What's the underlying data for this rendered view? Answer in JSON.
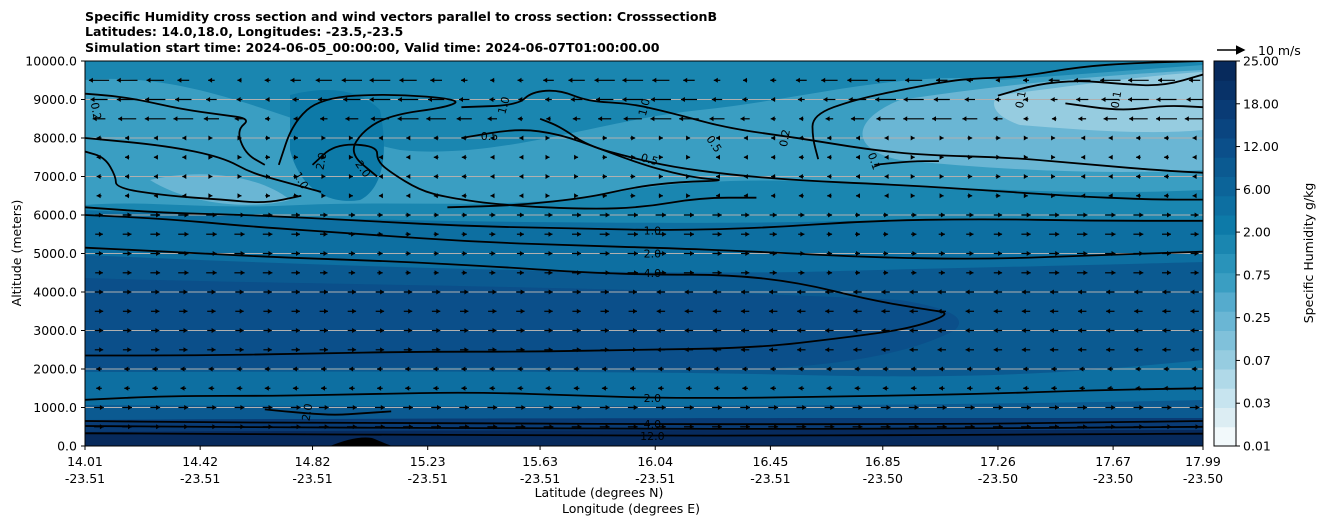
{
  "title": {
    "line1": "Specific Humidity cross section and wind vectors parallel to cross section: CrosssectionB",
    "line2": "Latitudes: 14.0,18.0, Longitudes: -23.5,-23.5",
    "line3": "Simulation start time: 2024-06-05_00:00:00, Valid time: 2024-06-07T01:00:00.00"
  },
  "colors": {
    "deep": "#072a5c",
    "dark": "#0b4f8a",
    "mid": "#0d6fa1",
    "base": "#1a86b0",
    "light": "#3a9ec2",
    "pale": "#6ab6d4",
    "paler": "#96cce0",
    "palest": "#c7e4ef"
  },
  "chart_data": {
    "type": "contourf",
    "xlabel": "Latitude (degrees N)",
    "xlabel2": "Longitude (degrees E)",
    "ylabel": "Altitude (meters)",
    "ylim": [
      0,
      10000
    ],
    "yticks": [
      "0.0",
      "1000.0",
      "2000.0",
      "3000.0",
      "4000.0",
      "5000.0",
      "6000.0",
      "7000.0",
      "8000.0",
      "9000.0",
      "10000.0"
    ],
    "ytick_values": [
      0,
      1000,
      2000,
      3000,
      4000,
      5000,
      6000,
      7000,
      8000,
      9000,
      10000
    ],
    "xlim": [
      14.01,
      17.99
    ],
    "xticks": [
      {
        "lat": "14.01",
        "lon": "-23.51",
        "value": 14.01
      },
      {
        "lat": "14.42",
        "lon": "-23.51",
        "value": 14.42
      },
      {
        "lat": "14.82",
        "lon": "-23.51",
        "value": 14.82
      },
      {
        "lat": "15.23",
        "lon": "-23.51",
        "value": 15.23
      },
      {
        "lat": "15.63",
        "lon": "-23.51",
        "value": 15.63
      },
      {
        "lat": "16.04",
        "lon": "-23.51",
        "value": 16.04
      },
      {
        "lat": "16.45",
        "lon": "-23.51",
        "value": 16.45
      },
      {
        "lat": "16.85",
        "lon": "-23.50",
        "value": 16.85
      },
      {
        "lat": "17.26",
        "lon": "-23.50",
        "value": 17.26
      },
      {
        "lat": "17.67",
        "lon": "-23.50",
        "value": 17.67
      },
      {
        "lat": "17.99",
        "lon": "-23.50",
        "value": 17.99
      }
    ],
    "colorbar": {
      "label": "Specific Humidity g/kg",
      "tick_labels": [
        "0.01",
        "0.03",
        "0.07",
        "0.25",
        "0.75",
        "2.00",
        "6.00",
        "12.00",
        "18.00",
        "25.00"
      ],
      "colors": [
        "#f2f9fb",
        "#dcedf3",
        "#c7e4ef",
        "#b0d9e8",
        "#96cce0",
        "#80c1da",
        "#6ab6d4",
        "#55abcd",
        "#3a9ec2",
        "#2993ba",
        "#1a86b0",
        "#0d7aa8",
        "#0d6fa1",
        "#0c6499",
        "#0b5a91",
        "#0b4f8a",
        "#0a4580",
        "#093b75",
        "#083268",
        "#072a5c"
      ]
    },
    "quiver_key": {
      "label": "10 m/s",
      "speed": 10
    },
    "contour_labels": [
      {
        "text": "0.2",
        "lat": 14.05,
        "alt": 8700,
        "rot": 80
      },
      {
        "text": "1.0",
        "lat": 15.5,
        "alt": 8850,
        "rot": -75
      },
      {
        "text": "1.0",
        "lat": 16.0,
        "alt": 8800,
        "rot": -75
      },
      {
        "text": "0.5",
        "lat": 15.45,
        "alt": 8050,
        "rot": 0
      },
      {
        "text": "0.5",
        "lat": 16.25,
        "alt": 7850,
        "rot": 55
      },
      {
        "text": "0.5",
        "lat": 16.02,
        "alt": 7450,
        "rot": 15
      },
      {
        "text": "0.2",
        "lat": 16.5,
        "alt": 8000,
        "rot": -80
      },
      {
        "text": "0.1",
        "lat": 17.34,
        "alt": 9000,
        "rot": -80
      },
      {
        "text": "0.1",
        "lat": 17.68,
        "alt": 9000,
        "rot": -80
      },
      {
        "text": "0.1",
        "lat": 16.82,
        "alt": 7400,
        "rot": 70
      },
      {
        "text": "2.0",
        "lat": 14.85,
        "alt": 7400,
        "rot": -80
      },
      {
        "text": "2.0",
        "lat": 15.0,
        "alt": 7200,
        "rot": 55
      },
      {
        "text": "1.0",
        "lat": 14.78,
        "alt": 6900,
        "rot": 60
      },
      {
        "text": "1.0",
        "lat": 16.03,
        "alt": 5600,
        "rot": 0
      },
      {
        "text": "2.0",
        "lat": 16.03,
        "alt": 5000,
        "rot": 0
      },
      {
        "text": "4.0",
        "lat": 16.03,
        "alt": 4500,
        "rot": 0
      },
      {
        "text": "2.0",
        "lat": 16.03,
        "alt": 1250,
        "rot": 0
      },
      {
        "text": "2.0",
        "lat": 14.8,
        "alt": 880,
        "rot": -80
      },
      {
        "text": "4.0",
        "lat": 16.03,
        "alt": 570,
        "rot": 0
      },
      {
        "text": "12.0",
        "lat": 16.03,
        "alt": 260,
        "rot": 0
      }
    ],
    "contours": [
      {
        "level": 0.1,
        "points": [
          [
            16.82,
            7300
          ],
          [
            16.95,
            7400
          ],
          [
            17.05,
            7400
          ]
        ]
      },
      {
        "level": 0.1,
        "points": [
          [
            17.26,
            9100
          ],
          [
            17.4,
            9400
          ],
          [
            17.55,
            9500
          ],
          [
            17.7,
            9400
          ],
          [
            17.85,
            9350
          ],
          [
            17.99,
            9650
          ]
        ]
      },
      {
        "level": 0.1,
        "points": [
          [
            17.5,
            8900
          ],
          [
            17.7,
            8700
          ],
          [
            17.85,
            8850
          ],
          [
            17.99,
            8800
          ]
        ]
      },
      {
        "level": 0.2,
        "points": [
          [
            14.01,
            9150
          ],
          [
            14.1,
            9100
          ],
          [
            14.2,
            9000
          ],
          [
            14.35,
            8750
          ],
          [
            14.5,
            8600
          ],
          [
            14.6,
            8500
          ],
          [
            14.55,
            8200
          ],
          [
            14.58,
            7600
          ],
          [
            14.65,
            7300
          ]
        ]
      },
      {
        "level": 0.2,
        "points": [
          [
            16.62,
            7450
          ],
          [
            16.6,
            8000
          ],
          [
            16.6,
            8600
          ],
          [
            16.75,
            9000
          ],
          [
            16.95,
            9300
          ],
          [
            17.1,
            9500
          ],
          [
            17.2,
            9550
          ],
          [
            17.35,
            9600
          ],
          [
            17.55,
            9850
          ],
          [
            17.75,
            9950
          ],
          [
            17.99,
            10000
          ]
        ]
      },
      {
        "level": 0.5,
        "points": [
          [
            14.01,
            7650
          ],
          [
            14.08,
            7500
          ],
          [
            14.12,
            7000
          ],
          [
            14.12,
            6700
          ],
          [
            14.3,
            6500
          ],
          [
            14.5,
            6400
          ],
          [
            14.65,
            6300
          ],
          [
            14.78,
            6500
          ]
        ]
      },
      {
        "level": 0.5,
        "points": [
          [
            15.63,
            8500
          ],
          [
            15.7,
            8300
          ],
          [
            15.8,
            7800
          ],
          [
            15.95,
            7500
          ],
          [
            16.1,
            7250
          ],
          [
            16.3,
            7050
          ],
          [
            16.55,
            6900
          ],
          [
            16.85,
            6800
          ],
          [
            17.1,
            6700
          ],
          [
            17.5,
            6500
          ],
          [
            17.8,
            6400
          ],
          [
            17.99,
            6400
          ]
        ]
      },
      {
        "level": 0.5,
        "points": [
          [
            15.35,
            8000
          ],
          [
            15.55,
            8250
          ],
          [
            15.7,
            8100
          ],
          [
            15.85,
            7700
          ],
          [
            16.0,
            7300
          ],
          [
            16.1,
            7100
          ],
          [
            16.2,
            6950
          ],
          [
            16.3,
            6900
          ],
          [
            16.1,
            6850
          ],
          [
            15.95,
            6700
          ],
          [
            15.8,
            6450
          ],
          [
            15.55,
            6250
          ],
          [
            15.3,
            6200
          ]
        ]
      },
      {
        "level": 1.0,
        "points": [
          [
            14.01,
            8000
          ],
          [
            14.3,
            7800
          ],
          [
            14.5,
            7500
          ],
          [
            14.6,
            7100
          ],
          [
            14.7,
            6900
          ],
          [
            14.85,
            6600
          ]
        ]
      },
      {
        "level": 1.0,
        "points": [
          [
            15.35,
            8800
          ],
          [
            15.55,
            8850
          ],
          [
            15.6,
            9200
          ],
          [
            15.7,
            9250
          ],
          [
            15.8,
            8950
          ],
          [
            15.95,
            8900
          ],
          [
            16.1,
            8650
          ],
          [
            16.3,
            8250
          ],
          [
            16.55,
            8000
          ],
          [
            16.8,
            7700
          ],
          [
            17.0,
            7550
          ],
          [
            17.3,
            7500
          ],
          [
            17.6,
            7300
          ],
          [
            17.85,
            7150
          ],
          [
            17.99,
            7100
          ]
        ]
      },
      {
        "level": 1.0,
        "points": [
          [
            14.7,
            7300
          ],
          [
            14.75,
            8400
          ],
          [
            14.85,
            9050
          ],
          [
            15.1,
            9150
          ],
          [
            15.35,
            9000
          ],
          [
            15.3,
            8800
          ],
          [
            15.1,
            8600
          ],
          [
            15.0,
            8200
          ],
          [
            14.95,
            7600
          ],
          [
            15.05,
            7000
          ]
        ]
      },
      {
        "level": 1.0,
        "points": [
          [
            14.01,
            6200
          ],
          [
            14.3,
            6050
          ],
          [
            14.6,
            6000
          ],
          [
            15.0,
            5850
          ],
          [
            15.4,
            5700
          ],
          [
            15.8,
            5650
          ],
          [
            16.04,
            5600
          ],
          [
            16.4,
            5650
          ],
          [
            16.8,
            5850
          ],
          [
            17.2,
            5900
          ],
          [
            17.6,
            5850
          ],
          [
            17.99,
            5850
          ]
        ]
      },
      {
        "level": 2.0,
        "points": [
          [
            14.82,
            7300
          ],
          [
            14.9,
            7850
          ],
          [
            15.05,
            7800
          ],
          [
            15.05,
            7400
          ],
          [
            15.1,
            7100
          ],
          [
            15.2,
            6650
          ],
          [
            15.3,
            6450
          ],
          [
            15.5,
            6250
          ],
          [
            15.8,
            6150
          ],
          [
            16.0,
            6200
          ],
          [
            16.2,
            6450
          ],
          [
            16.4,
            6450
          ]
        ]
      },
      {
        "level": 2.0,
        "points": [
          [
            14.01,
            6000
          ],
          [
            14.3,
            5900
          ],
          [
            14.6,
            5700
          ],
          [
            15.0,
            5500
          ],
          [
            15.4,
            5300
          ],
          [
            15.8,
            5200
          ],
          [
            16.04,
            5150
          ],
          [
            16.4,
            5050
          ],
          [
            16.8,
            4900
          ],
          [
            17.2,
            4850
          ],
          [
            17.6,
            4950
          ],
          [
            17.99,
            5050
          ]
        ]
      },
      {
        "level": 2.0,
        "points": [
          [
            14.01,
            1200
          ],
          [
            14.3,
            1300
          ],
          [
            14.7,
            1300
          ],
          [
            15.0,
            1350
          ],
          [
            15.4,
            1400
          ],
          [
            15.8,
            1300
          ],
          [
            16.04,
            1250
          ],
          [
            16.4,
            1250
          ],
          [
            16.8,
            1300
          ],
          [
            17.2,
            1350
          ],
          [
            17.6,
            1450
          ],
          [
            17.99,
            1500
          ]
        ]
      },
      {
        "level": 2.0,
        "points": [
          [
            14.65,
            950
          ],
          [
            14.72,
            900
          ],
          [
            14.8,
            850
          ],
          [
            14.9,
            800
          ],
          [
            15.0,
            850
          ],
          [
            15.1,
            900
          ]
        ]
      },
      {
        "level": 4.0,
        "points": [
          [
            14.01,
            5150
          ],
          [
            14.3,
            5050
          ],
          [
            14.7,
            4900
          ],
          [
            15.1,
            4800
          ],
          [
            15.5,
            4650
          ],
          [
            15.8,
            4500
          ],
          [
            16.04,
            4450
          ],
          [
            16.3,
            4450
          ],
          [
            16.55,
            4250
          ],
          [
            16.8,
            3800
          ],
          [
            17.0,
            3550
          ],
          [
            17.1,
            3450
          ],
          [
            16.95,
            3050
          ],
          [
            16.7,
            2800
          ],
          [
            16.4,
            2550
          ],
          [
            16.0,
            2500
          ],
          [
            15.6,
            2450
          ],
          [
            15.2,
            2450
          ],
          [
            14.8,
            2400
          ],
          [
            14.4,
            2350
          ],
          [
            14.01,
            2350
          ]
        ]
      },
      {
        "level": 4.0,
        "points": [
          [
            14.01,
            650
          ],
          [
            14.4,
            620
          ],
          [
            14.8,
            600
          ],
          [
            15.2,
            600
          ],
          [
            15.63,
            580
          ],
          [
            16.04,
            570
          ],
          [
            16.45,
            560
          ],
          [
            16.85,
            570
          ],
          [
            17.26,
            580
          ],
          [
            17.67,
            620
          ],
          [
            17.99,
            650
          ]
        ]
      },
      {
        "level": 6.0,
        "points": [
          [
            14.01,
            520
          ],
          [
            14.4,
            500
          ],
          [
            14.8,
            480
          ],
          [
            15.2,
            470
          ],
          [
            15.63,
            460
          ],
          [
            16.04,
            450
          ],
          [
            16.45,
            440
          ],
          [
            16.85,
            450
          ],
          [
            17.26,
            460
          ],
          [
            17.67,
            480
          ],
          [
            17.99,
            500
          ]
        ]
      },
      {
        "level": 12.0,
        "points": [
          [
            14.01,
            330
          ],
          [
            14.4,
            320
          ],
          [
            14.8,
            300
          ],
          [
            15.2,
            290
          ],
          [
            15.63,
            280
          ],
          [
            16.04,
            270
          ],
          [
            16.45,
            270
          ],
          [
            16.85,
            280
          ],
          [
            17.26,
            290
          ],
          [
            17.67,
            310
          ],
          [
            17.99,
            320
          ]
        ]
      }
    ]
  }
}
